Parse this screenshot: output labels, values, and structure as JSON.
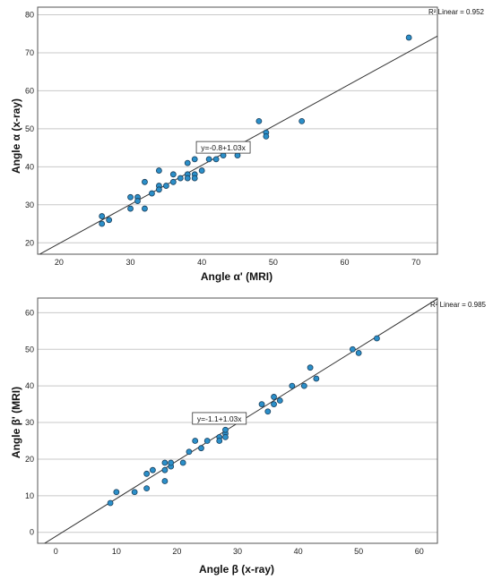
{
  "chart_data": [
    {
      "type": "scatter",
      "xlabel": "Angle α' (MRI)",
      "ylabel": "Angle α (x-ray)",
      "xlim": [
        17,
        73
      ],
      "ylim": [
        17,
        82
      ],
      "xticks": [
        20,
        30,
        40,
        50,
        60,
        70
      ],
      "yticks": [
        20,
        30,
        40,
        50,
        60,
        70,
        80
      ],
      "grid": "horizontal",
      "r2_label": "R² Linear = 0.952",
      "equation_label": "y=-0.8+1.03x",
      "fit": {
        "intercept": -0.8,
        "slope": 1.03
      },
      "point_color": "#2b8fc9",
      "points": [
        [
          26,
          27
        ],
        [
          26,
          25
        ],
        [
          27,
          26
        ],
        [
          30,
          32
        ],
        [
          30,
          29
        ],
        [
          31,
          32
        ],
        [
          31,
          31
        ],
        [
          32,
          36
        ],
        [
          32,
          29
        ],
        [
          33,
          33
        ],
        [
          34,
          39
        ],
        [
          34,
          35
        ],
        [
          34,
          34
        ],
        [
          35,
          35
        ],
        [
          36,
          36
        ],
        [
          36,
          38
        ],
        [
          37,
          37
        ],
        [
          38,
          41
        ],
        [
          38,
          38
        ],
        [
          38,
          37
        ],
        [
          39,
          42
        ],
        [
          39,
          38
        ],
        [
          39,
          37
        ],
        [
          40,
          39
        ],
        [
          41,
          42
        ],
        [
          42,
          42
        ],
        [
          43,
          43
        ],
        [
          45,
          44
        ],
        [
          45,
          43
        ],
        [
          48,
          52
        ],
        [
          49,
          49
        ],
        [
          49,
          48
        ],
        [
          54,
          52
        ],
        [
          69,
          74
        ]
      ]
    },
    {
      "type": "scatter",
      "xlabel": "Angle β (x-ray)",
      "ylabel": "Angle β' (MRI)",
      "xlim": [
        -3,
        63
      ],
      "ylim": [
        -3,
        64
      ],
      "xticks": [
        0,
        10,
        20,
        30,
        40,
        50,
        60
      ],
      "yticks": [
        0,
        10,
        20,
        30,
        40,
        50,
        60
      ],
      "grid": "horizontal",
      "r2_label": "R² Linear = 0.985",
      "equation_label": "y=-1.1+1.03x",
      "fit": {
        "intercept": -1.1,
        "slope": 1.03
      },
      "point_color": "#2b8fc9",
      "points": [
        [
          9,
          8
        ],
        [
          10,
          11
        ],
        [
          13,
          11
        ],
        [
          15,
          12
        ],
        [
          15,
          16
        ],
        [
          16,
          17
        ],
        [
          18,
          14
        ],
        [
          18,
          17
        ],
        [
          18,
          19
        ],
        [
          19,
          18
        ],
        [
          19,
          19
        ],
        [
          21,
          19
        ],
        [
          22,
          22
        ],
        [
          23,
          25
        ],
        [
          24,
          23
        ],
        [
          25,
          25
        ],
        [
          27,
          26
        ],
        [
          27,
          25
        ],
        [
          28,
          27
        ],
        [
          28,
          26
        ],
        [
          28,
          28
        ],
        [
          34,
          35
        ],
        [
          35,
          33
        ],
        [
          36,
          35
        ],
        [
          36,
          37
        ],
        [
          37,
          36
        ],
        [
          39,
          40
        ],
        [
          41,
          40
        ],
        [
          42,
          45
        ],
        [
          43,
          42
        ],
        [
          49,
          50
        ],
        [
          50,
          49
        ],
        [
          53,
          53
        ]
      ]
    }
  ]
}
